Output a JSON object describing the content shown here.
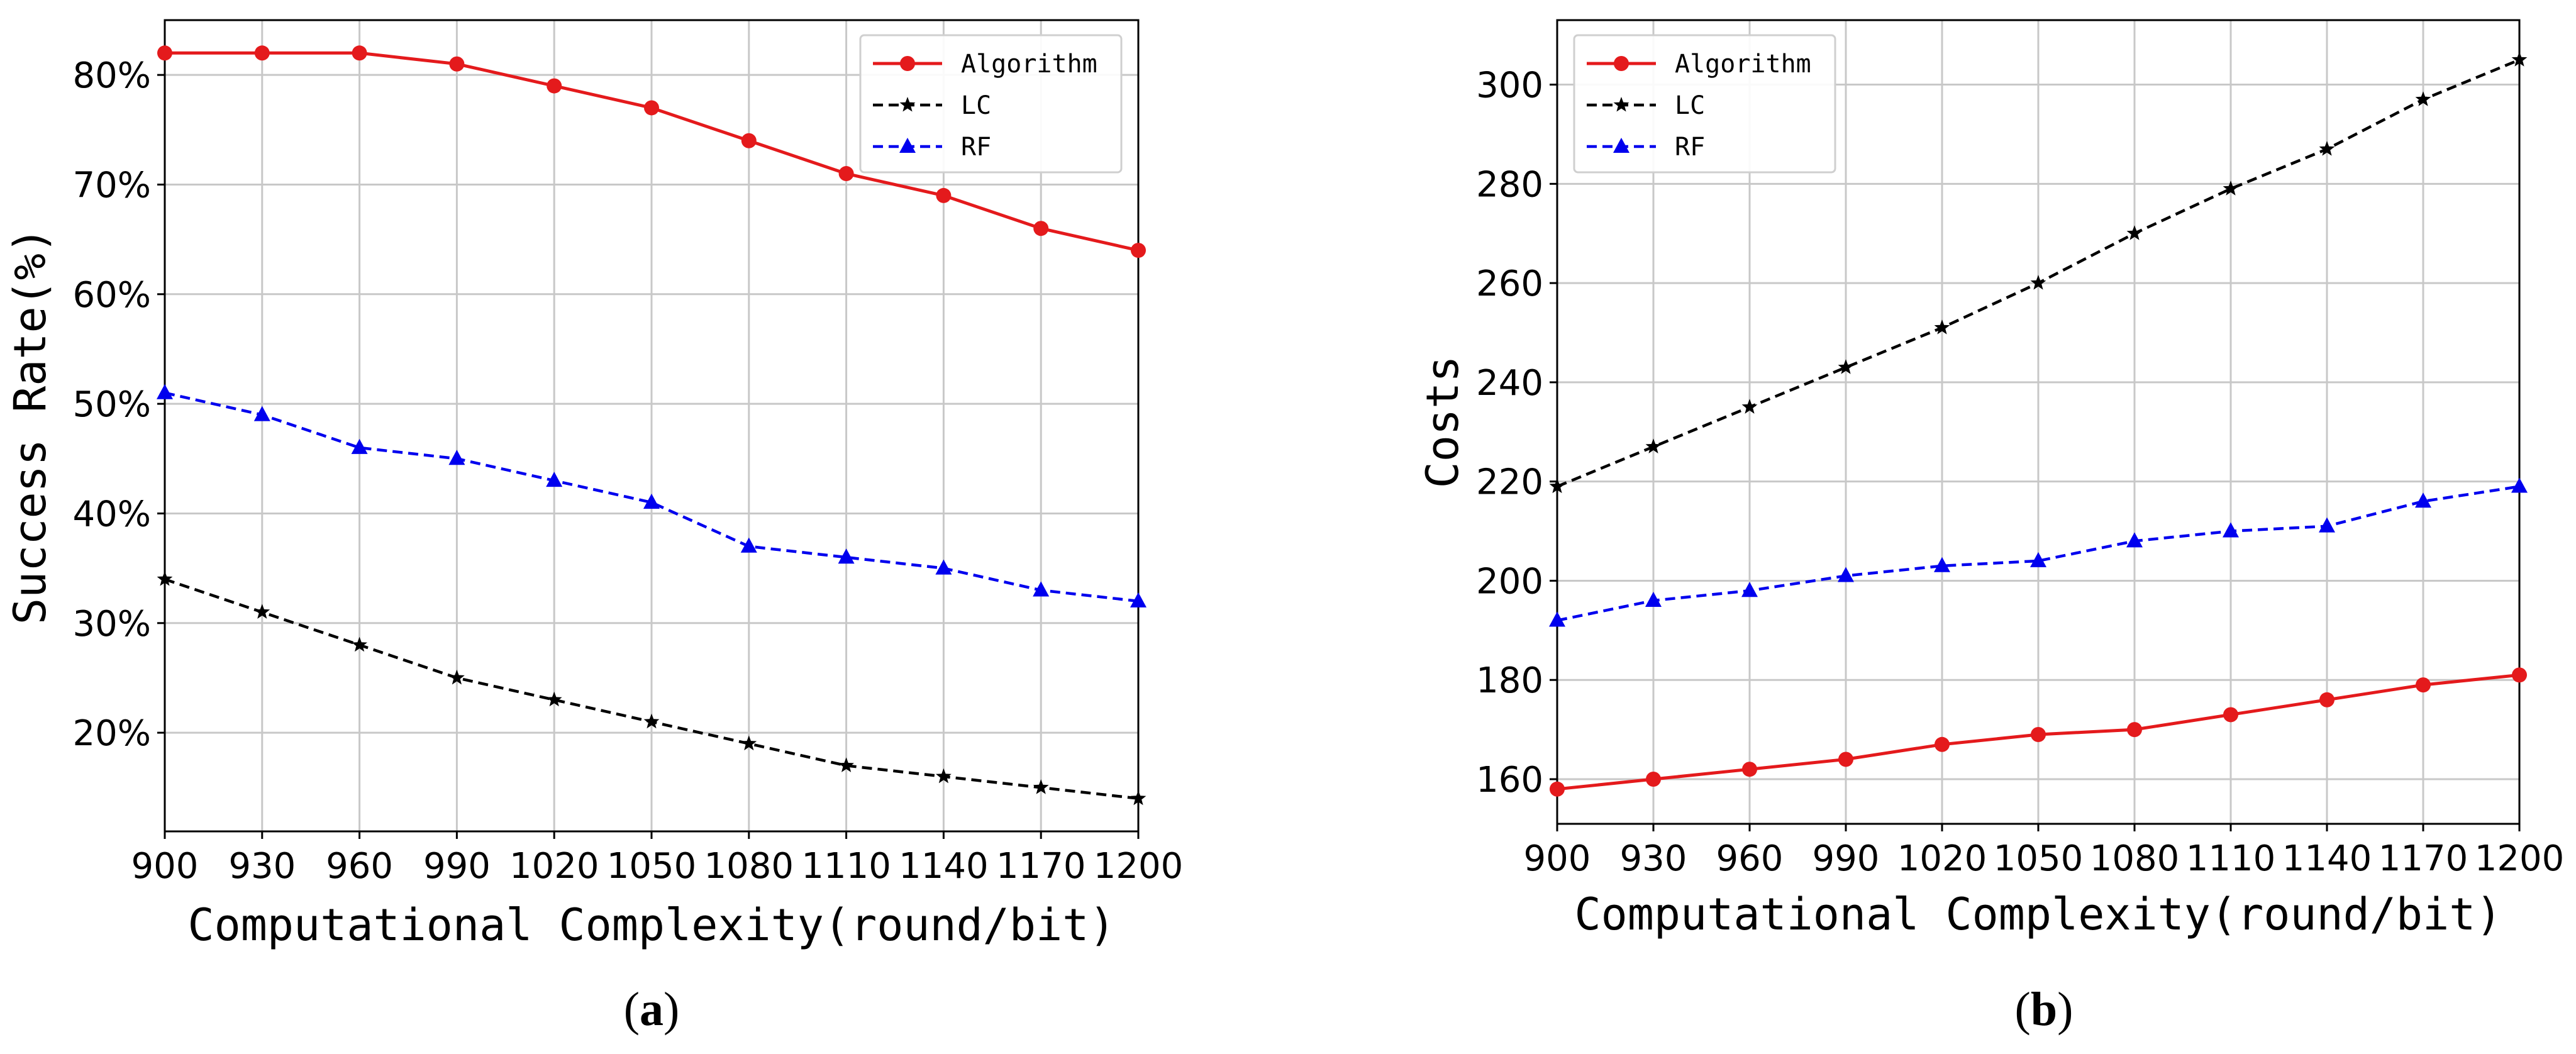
{
  "chart_data": [
    {
      "type": "line",
      "caption": "a",
      "x": [
        900,
        930,
        960,
        990,
        1020,
        1050,
        1080,
        1110,
        1140,
        1170,
        1200
      ],
      "xlabel": "Computational Complexity(round/bit)",
      "ylabel": "Success Rate(%)",
      "xlim": [
        900,
        1200
      ],
      "ylim": [
        11,
        85
      ],
      "yticks": [
        20,
        30,
        40,
        50,
        60,
        70,
        80
      ],
      "ytick_labels": [
        "20%",
        "30%",
        "40%",
        "50%",
        "60%",
        "70%",
        "80%"
      ],
      "grid": true,
      "legend_position": "top-right",
      "series": [
        {
          "name": "Algorithm",
          "color": "#e41a1c",
          "line": "solid",
          "marker": "circle",
          "values": [
            82,
            82,
            82,
            81,
            79,
            77,
            74,
            71,
            69,
            66,
            64
          ]
        },
        {
          "name": "LC",
          "color": "#000000",
          "line": "dashed",
          "marker": "star",
          "values": [
            34,
            31,
            28,
            25,
            23,
            21,
            19,
            17,
            16,
            15,
            14
          ]
        },
        {
          "name": "RF",
          "color": "#0000ee",
          "line": "dashed",
          "marker": "triangle",
          "values": [
            51,
            49,
            46,
            45,
            43,
            41,
            37,
            36,
            35,
            33,
            32
          ]
        }
      ]
    },
    {
      "type": "line",
      "caption": "b",
      "x": [
        900,
        930,
        960,
        990,
        1020,
        1050,
        1080,
        1110,
        1140,
        1170,
        1200
      ],
      "xlabel": "Computational Complexity(round/bit)",
      "ylabel": "Costs",
      "xlim": [
        900,
        1200
      ],
      "ylim": [
        151,
        313
      ],
      "yticks": [
        160,
        180,
        200,
        220,
        240,
        260,
        280,
        300
      ],
      "ytick_labels": [
        "160",
        "180",
        "200",
        "220",
        "240",
        "260",
        "280",
        "300"
      ],
      "grid": true,
      "legend_position": "top-left",
      "series": [
        {
          "name": "Algorithm",
          "color": "#e41a1c",
          "line": "solid",
          "marker": "circle",
          "values": [
            158,
            160,
            162,
            164,
            167,
            169,
            170,
            173,
            176,
            179,
            181
          ]
        },
        {
          "name": "LC",
          "color": "#000000",
          "line": "dashed",
          "marker": "star",
          "values": [
            219,
            227,
            235,
            243,
            251,
            260,
            270,
            279,
            287,
            297,
            305
          ]
        },
        {
          "name": "RF",
          "color": "#0000ee",
          "line": "dashed",
          "marker": "triangle",
          "values": [
            192,
            196,
            198,
            201,
            203,
            204,
            208,
            210,
            211,
            216,
            219
          ]
        }
      ]
    }
  ]
}
